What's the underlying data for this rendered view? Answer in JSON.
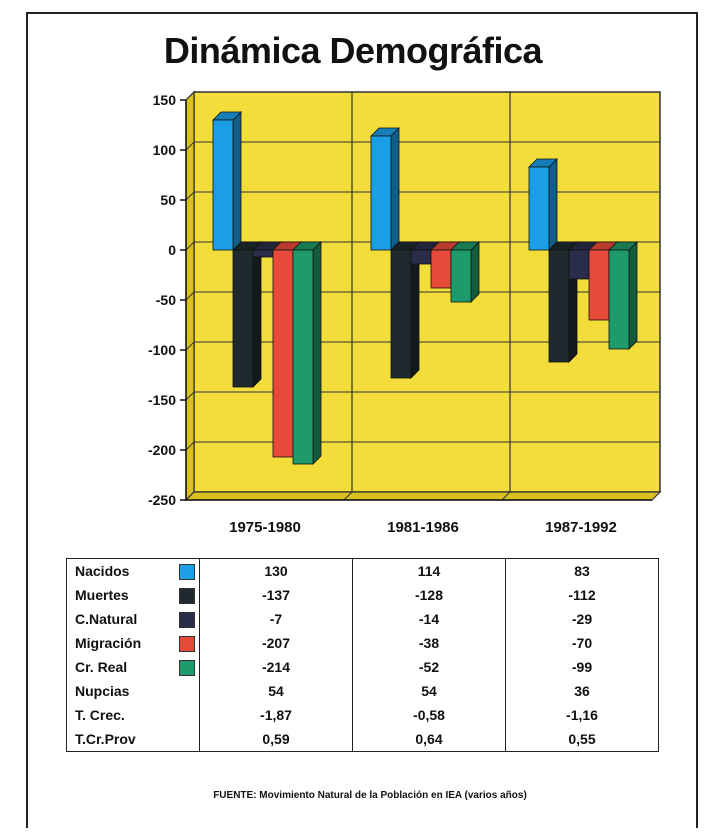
{
  "title": "Dinámica Demográfica",
  "source": "FUENTE: Movimiento Natural de la Población en IEA (varios años)",
  "colors": {
    "plot_bg": "#f2dd3a",
    "plot_side": "#d9c21f",
    "grid": "#333333"
  },
  "chart_data": {
    "type": "bar",
    "title": "Dinámica Demográfica",
    "categories": [
      "1975-1980",
      "1981-1986",
      "1987-1992"
    ],
    "ylim": [
      -250,
      150
    ],
    "yticks": [
      150,
      100,
      50,
      0,
      -50,
      -100,
      -150,
      -200,
      -250
    ],
    "grid": true,
    "legend": "table-below",
    "series": [
      {
        "name": "Nacidos",
        "values": [
          130,
          114,
          83
        ],
        "color": "#1a9ee6"
      },
      {
        "name": "Muertes",
        "values": [
          -137,
          -128,
          -112
        ],
        "color": "#1f2a2e"
      },
      {
        "name": "C.Natural",
        "values": [
          -7,
          -14,
          -29
        ],
        "color": "#2a2d4a"
      },
      {
        "name": "Migración",
        "values": [
          -207,
          -38,
          -70
        ],
        "color": "#e84a3a"
      },
      {
        "name": "Cr. Real",
        "values": [
          -214,
          -52,
          -99
        ],
        "color": "#1f9a6a"
      }
    ]
  },
  "table": {
    "rows": [
      {
        "label": "Nacidos",
        "swatch": "#1a9ee6",
        "values": [
          "130",
          "114",
          "83"
        ]
      },
      {
        "label": "Muertes",
        "swatch": "#1f2a2e",
        "values": [
          "-137",
          "-128",
          "-112"
        ]
      },
      {
        "label": "C.Natural",
        "swatch": "#2a2d4a",
        "values": [
          "-7",
          "-14",
          "-29"
        ]
      },
      {
        "label": "Migración",
        "swatch": "#e84a3a",
        "values": [
          "-207",
          "-38",
          "-70"
        ]
      },
      {
        "label": "Cr. Real",
        "swatch": "#1f9a6a",
        "values": [
          "-214",
          "-52",
          "-99"
        ]
      },
      {
        "label": "Nupcias",
        "values": [
          "54",
          "54",
          "36"
        ]
      },
      {
        "label": "T. Crec.",
        "values": [
          "-1,87",
          "-0,58",
          "-1,16"
        ]
      },
      {
        "label": "T.Cr.Prov",
        "values": [
          "0,59",
          "0,64",
          "0,55"
        ]
      }
    ]
  }
}
